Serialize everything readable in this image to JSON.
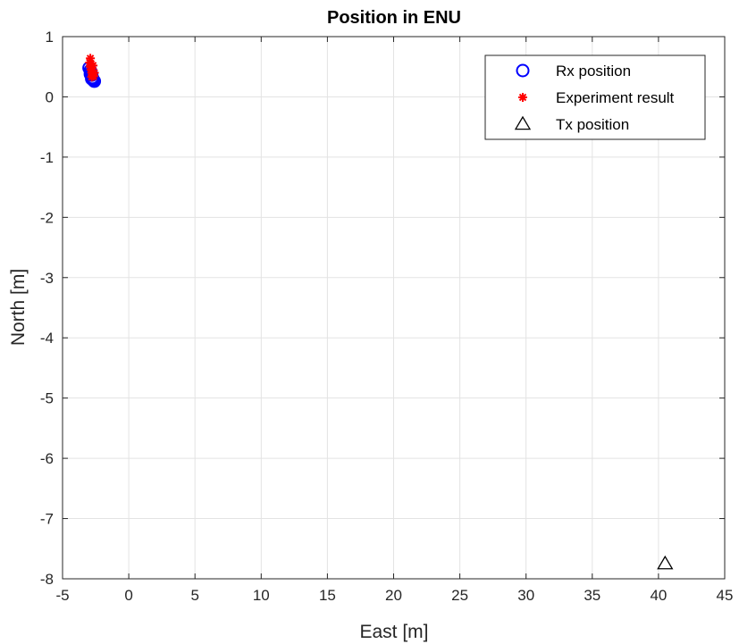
{
  "chart_data": {
    "type": "scatter",
    "title": "Position in ENU",
    "xlabel": "East [m]",
    "ylabel": "North [m]",
    "xlim": [
      -5,
      45
    ],
    "ylim": [
      -8,
      1
    ],
    "xticks": [
      -5,
      0,
      5,
      10,
      15,
      20,
      25,
      30,
      35,
      40,
      45
    ],
    "yticks": [
      1,
      0,
      -1,
      -2,
      -3,
      -4,
      -5,
      -6,
      -7,
      -8
    ],
    "grid": true,
    "legend_position": "top-right",
    "series": [
      {
        "name": "Rx position",
        "marker": "circle",
        "color": "#0000ff",
        "points": [
          [
            -3.0,
            0.48
          ],
          [
            -2.9,
            0.44
          ],
          [
            -2.85,
            0.4
          ],
          [
            -2.8,
            0.36
          ],
          [
            -2.75,
            0.32
          ],
          [
            -2.7,
            0.29
          ],
          [
            -2.65,
            0.27
          ],
          [
            -2.6,
            0.26
          ],
          [
            -2.9,
            0.38
          ],
          [
            -2.8,
            0.3
          ]
        ]
      },
      {
        "name": "Experiment result",
        "marker": "asterisk",
        "color": "#ff0000",
        "points": [
          [
            -2.9,
            0.64
          ],
          [
            -2.95,
            0.57
          ],
          [
            -2.85,
            0.55
          ],
          [
            -2.9,
            0.5
          ],
          [
            -2.8,
            0.48
          ],
          [
            -2.85,
            0.45
          ],
          [
            -2.75,
            0.43
          ],
          [
            -2.8,
            0.4
          ],
          [
            -2.7,
            0.38
          ],
          [
            -2.75,
            0.36
          ],
          [
            -2.65,
            0.34
          ],
          [
            -2.7,
            0.52
          ],
          [
            -2.8,
            0.33
          ],
          [
            -2.6,
            0.4
          ]
        ]
      },
      {
        "name": "Tx position",
        "marker": "triangle",
        "color": "#000000",
        "points": [
          [
            40.5,
            -7.75
          ]
        ]
      }
    ]
  }
}
